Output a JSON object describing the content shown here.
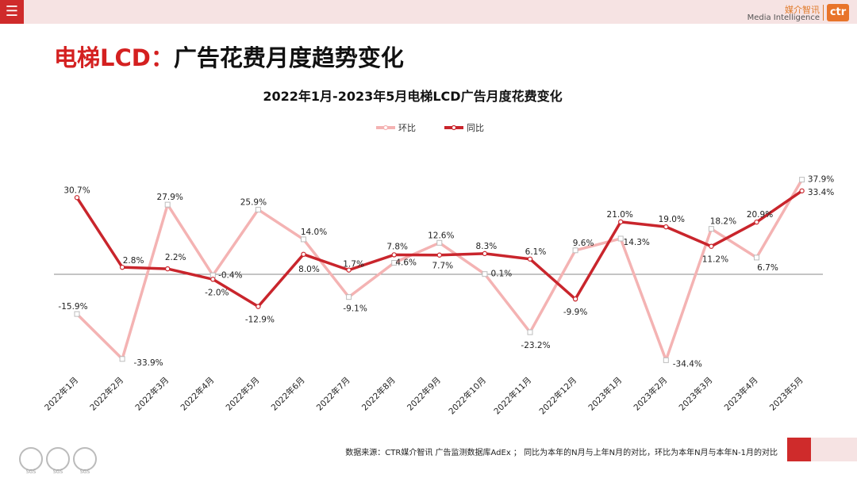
{
  "header": {
    "menu_icon": "hamburger-menu-icon",
    "logo_cn": "媒介智讯",
    "logo_en": "Media Intelligence",
    "logo_mark": "ctr"
  },
  "page_title_highlight": "电梯LCD：",
  "page_title_rest": "广告花费月度趋势变化",
  "footer": {
    "source_text": "数据来源：CTR媒介智讯 广告监测数据库AdEx ； 同比为本年的N月与上年N月的对比，环比为本年N月与本年N-1月的对比",
    "badges": [
      "SGS",
      "SGS",
      "SGS"
    ]
  },
  "colors": {
    "mom": "#f4b3b3",
    "yoy": "#c9252c",
    "accent": "#cf2b2b"
  },
  "chart_data": {
    "type": "line",
    "title": "2022年1月-2023年5月电梯LCD广告月度花费变化",
    "categories": [
      "2022年1月",
      "2022年2月",
      "2022年3月",
      "2022年4月",
      "2022年5月",
      "2022年6月",
      "2022年7月",
      "2022年8月",
      "2022年9月",
      "2022年10月",
      "2022年11月",
      "2022年12月",
      "2023年1月",
      "2023年2月",
      "2023年3月",
      "2023年4月",
      "2023年5月"
    ],
    "unit": "%",
    "ylim": [
      -40,
      40
    ],
    "legend_position": "top-center",
    "series": [
      {
        "name": "环比",
        "color": "#f4b3b3",
        "values": [
          -15.9,
          -33.9,
          27.9,
          -0.4,
          25.9,
          14.0,
          -9.1,
          4.6,
          12.6,
          0.1,
          -23.2,
          9.6,
          14.3,
          -34.4,
          18.2,
          6.7,
          37.9
        ],
        "labels": [
          "-15.9%",
          "-33.9%",
          "27.9%",
          "-0.4%",
          "25.9%",
          "14.0%",
          "-9.1%",
          "4.6%",
          "12.6%",
          "0.1%",
          "-23.2%",
          "9.6%",
          "14.3%",
          "-34.4%",
          "18.2%",
          "6.7%",
          "37.9%"
        ]
      },
      {
        "name": "同比",
        "color": "#c9252c",
        "values": [
          30.7,
          2.8,
          2.2,
          -2.0,
          -12.9,
          8.0,
          1.7,
          7.8,
          7.7,
          8.3,
          6.1,
          -9.9,
          21.0,
          19.0,
          11.2,
          20.9,
          33.4
        ],
        "labels": [
          "30.7%",
          "2.8%",
          "2.2%",
          "-2.0%",
          "-12.9%",
          "8.0%",
          "1.7%",
          "7.8%",
          "7.7%",
          "8.3%",
          "6.1%",
          "-9.9%",
          "21.0%",
          "19.0%",
          "11.2%",
          "20.9%",
          "33.4%"
        ]
      }
    ]
  }
}
